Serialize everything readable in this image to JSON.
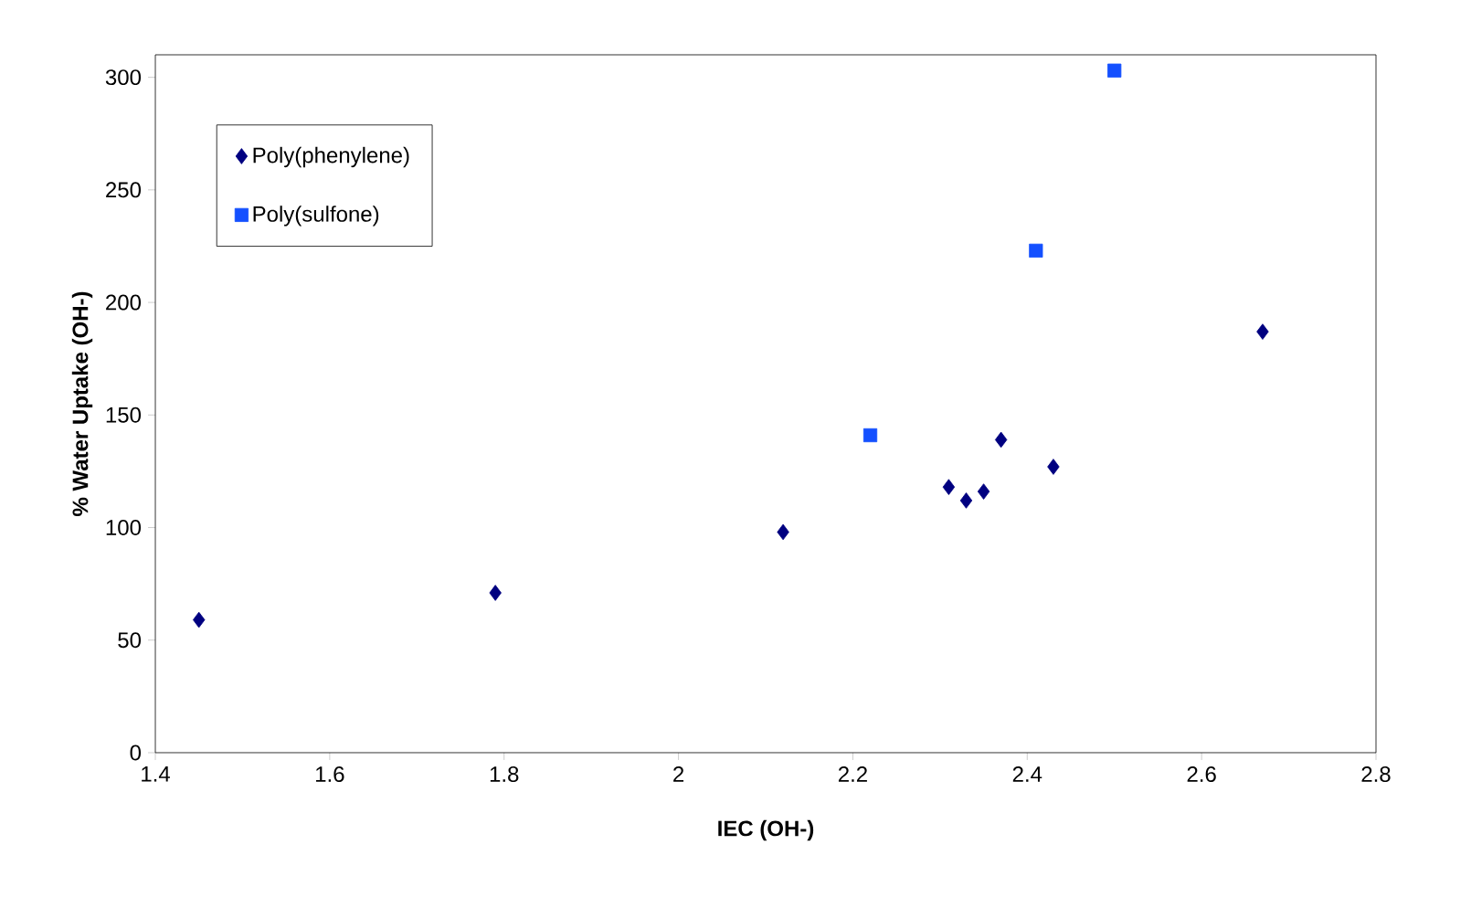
{
  "chart_data": {
    "type": "scatter",
    "xlabel": "IEC (OH-)",
    "ylabel": "% Water Uptake (OH-)",
    "xlim": [
      1.4,
      2.8
    ],
    "xticks": [
      1.4,
      1.6,
      1.8,
      2,
      2.2,
      2.4,
      2.6,
      2.8
    ],
    "ylim": [
      0,
      310
    ],
    "yticks": [
      0,
      50,
      100,
      150,
      200,
      250,
      300
    ],
    "grid": false,
    "legend": "top left",
    "series": [
      {
        "name": "Poly(phenylene)",
        "color": "#000080",
        "marker": "diamond",
        "x": [
          1.45,
          1.79,
          2.12,
          2.31,
          2.33,
          2.35,
          2.37,
          2.43,
          2.67
        ],
        "values": [
          59,
          71,
          98,
          118,
          112,
          116,
          139,
          127,
          187
        ]
      },
      {
        "name": "Poly(sulfone)",
        "color": "#1450ff",
        "marker": "square",
        "x": [
          2.22,
          2.41,
          2.5
        ],
        "values": [
          141,
          223,
          303
        ]
      }
    ]
  }
}
